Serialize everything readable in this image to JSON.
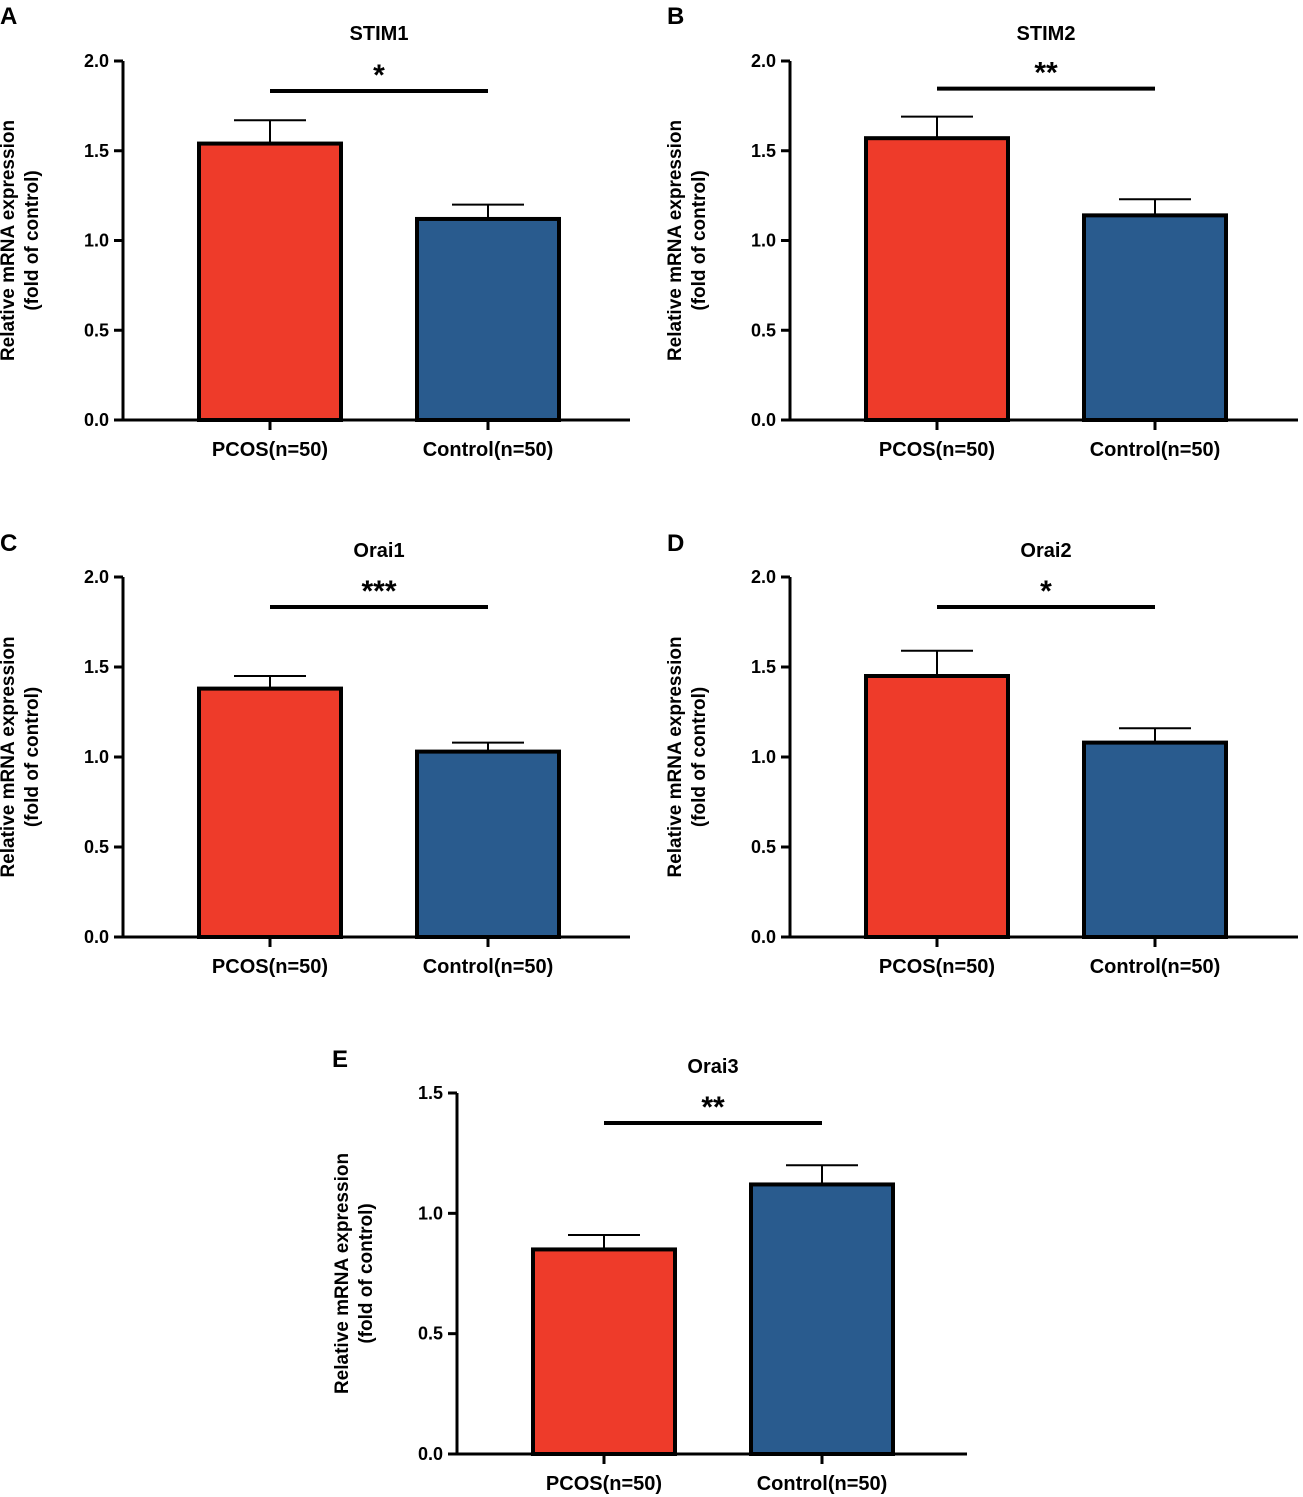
{
  "colors": {
    "pcos": "#EE3B2A",
    "control": "#295B8E",
    "axis": "#000000"
  },
  "chart_data": [
    {
      "panel": "A",
      "type": "bar",
      "title": "STIM1",
      "ylabel": [
        "Relative mRNA expression",
        "(fold of control)"
      ],
      "categories": [
        "PCOS(n=50)",
        "Control(n=50)"
      ],
      "values": [
        1.54,
        1.12
      ],
      "errors": [
        0.13,
        0.08
      ],
      "ylim": [
        0,
        2.0
      ],
      "yticks": [
        "0.0",
        "0.5",
        "1.0",
        "1.5",
        "2.0"
      ],
      "significance": "*"
    },
    {
      "panel": "B",
      "type": "bar",
      "title": "STIM2",
      "ylabel": [
        "Relative mRNA expression",
        "(fold of control)"
      ],
      "categories": [
        "PCOS(n=50)",
        "Control(n=50)"
      ],
      "values": [
        1.57,
        1.14
      ],
      "errors": [
        0.12,
        0.09
      ],
      "ylim": [
        0,
        2.0
      ],
      "yticks": [
        "0.0",
        "0.5",
        "1.0",
        "1.5",
        "2.0"
      ],
      "significance": "**"
    },
    {
      "panel": "C",
      "type": "bar",
      "title": "Orai1",
      "ylabel": [
        "Relative mRNA expression",
        "(fold of control)"
      ],
      "categories": [
        "PCOS(n=50)",
        "Control(n=50)"
      ],
      "values": [
        1.38,
        1.03
      ],
      "errors": [
        0.07,
        0.05
      ],
      "ylim": [
        0,
        2.0
      ],
      "yticks": [
        "0.0",
        "0.5",
        "1.0",
        "1.5",
        "2.0"
      ],
      "significance": "***"
    },
    {
      "panel": "D",
      "type": "bar",
      "title": "Orai2",
      "ylabel": [
        "Relative mRNA expression",
        "(fold of control)"
      ],
      "categories": [
        "PCOS(n=50)",
        "Control(n=50)"
      ],
      "values": [
        1.45,
        1.08
      ],
      "errors": [
        0.14,
        0.08
      ],
      "ylim": [
        0,
        2.0
      ],
      "yticks": [
        "0.0",
        "0.5",
        "1.0",
        "1.5",
        "2.0"
      ],
      "significance": "*"
    },
    {
      "panel": "E",
      "type": "bar",
      "title": "Orai3",
      "ylabel": [
        "Relative mRNA expression",
        "(fold of control)"
      ],
      "categories": [
        "PCOS(n=50)",
        "Control(n=50)"
      ],
      "values": [
        0.85,
        1.12
      ],
      "errors": [
        0.06,
        0.08
      ],
      "ylim": [
        0,
        1.5
      ],
      "yticks": [
        "0.0",
        "0.5",
        "1.0",
        "1.5"
      ],
      "significance": "**"
    }
  ]
}
